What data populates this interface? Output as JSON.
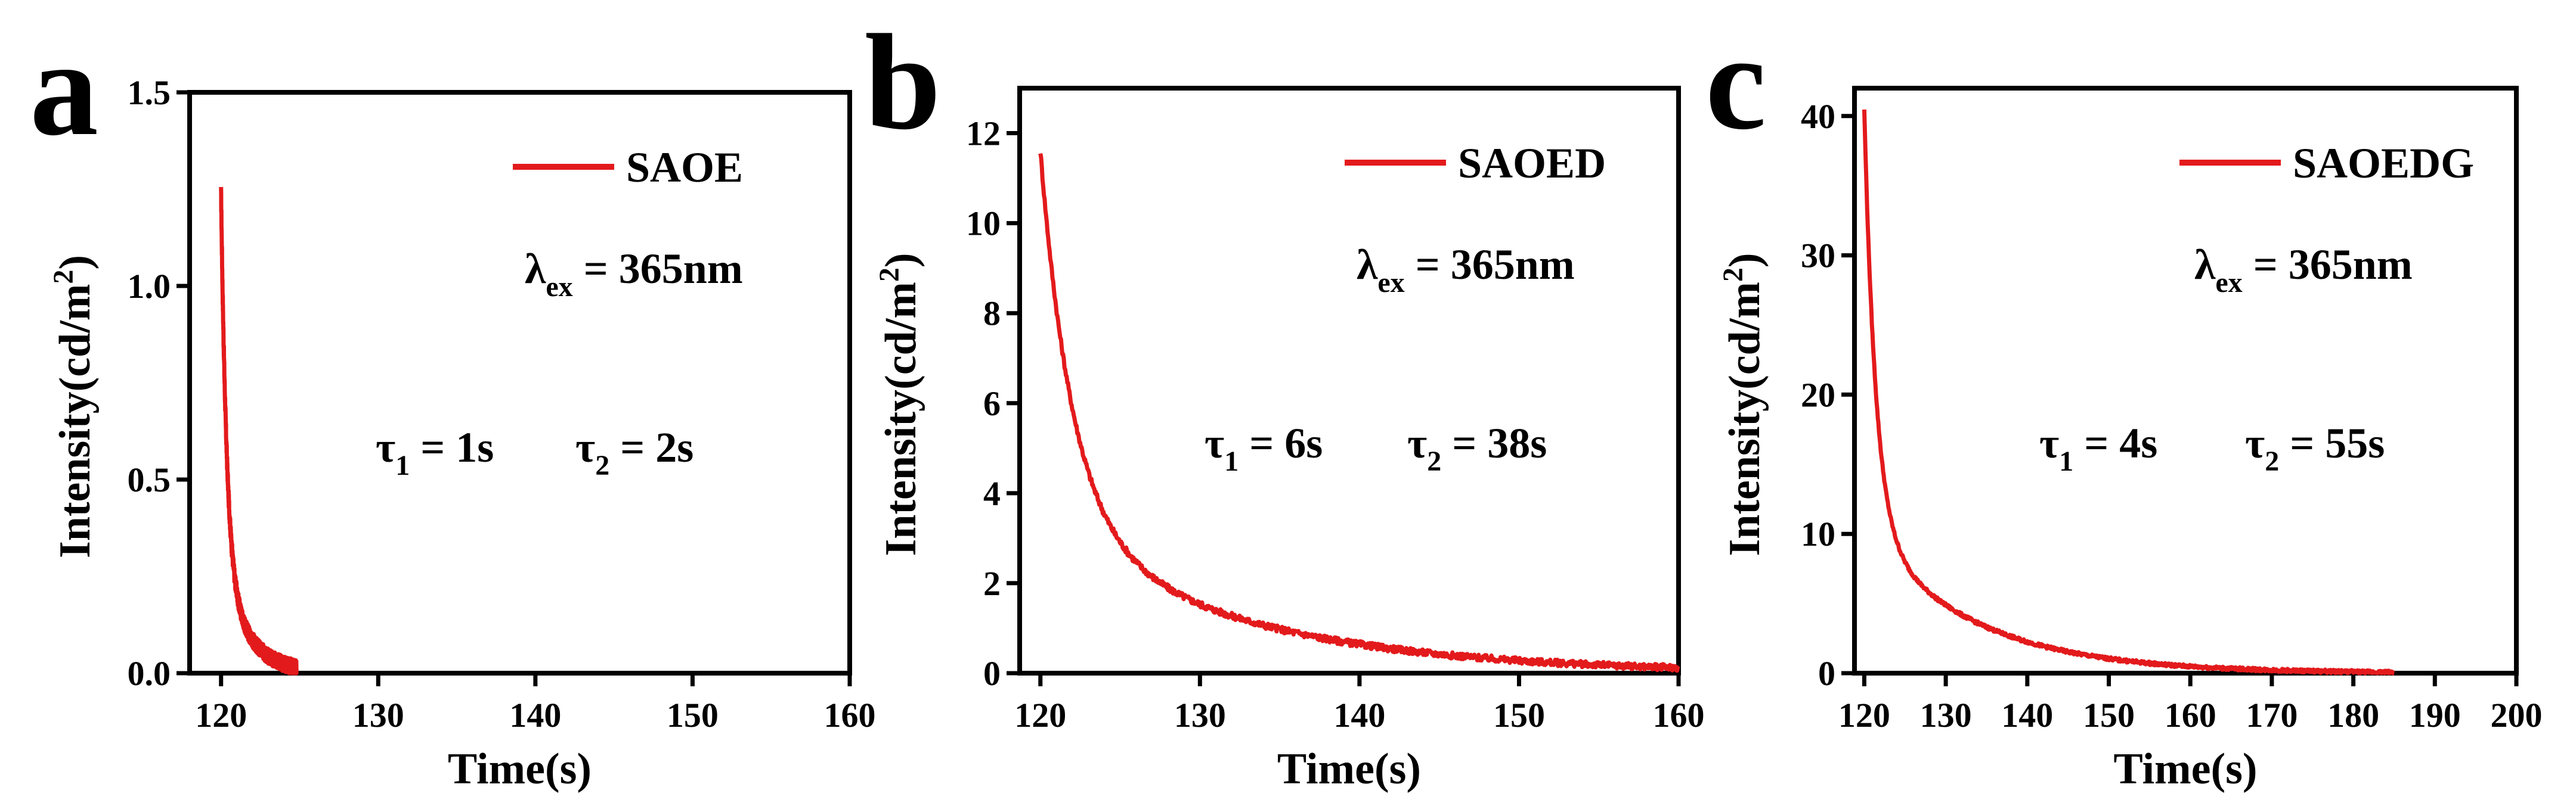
{
  "figure": {
    "colors": {
      "curve": "#e31a1c",
      "axis": "#000000",
      "background": "#ffffff"
    }
  },
  "chart_data": [
    {
      "panel": "a",
      "type": "line",
      "xlabel": "Time(s)",
      "ylabel": "Intensity(cd/m",
      "ylabel_sup": "2",
      "ylabel_close": ")",
      "xlim": [
        118,
        160
      ],
      "ylim": [
        0,
        1.5
      ],
      "xticks": [
        120,
        130,
        140,
        150,
        160
      ],
      "yticks": [
        0.0,
        0.5,
        1.0,
        1.5
      ],
      "ytick_labels": [
        "0.0",
        "0.5",
        "1.0",
        "1.5"
      ],
      "legend": "SAOE",
      "lambda_text": "λ",
      "lambda_sub": "ex",
      "lambda_value": " = 365nm",
      "tau1_sym": "τ",
      "tau1_sub": "1",
      "tau1_value": " = 1s",
      "tau2_sym": "τ",
      "tau2_sub": "2",
      "tau2_value": " = 2s",
      "decay": {
        "x0": 120,
        "A1": 0.95,
        "t1": 0.35,
        "A2": 0.29,
        "t2": 1.6,
        "y0": 0,
        "cutoff": 124.8,
        "noise": 0.02
      }
    },
    {
      "panel": "b",
      "type": "line",
      "xlabel": "Time(s)",
      "ylabel": "Intensity(cd/m",
      "ylabel_sup": "2",
      "ylabel_close": ")",
      "xlim": [
        118.7,
        160
      ],
      "ylim": [
        0,
        13
      ],
      "xticks": [
        120,
        130,
        140,
        150,
        160
      ],
      "yticks": [
        0,
        2,
        4,
        6,
        8,
        10,
        12
      ],
      "ytick_labels": [
        "0",
        "2",
        "4",
        "6",
        "8",
        "10",
        "12"
      ],
      "legend": "SAOED",
      "lambda_text": "λ",
      "lambda_sub": "ex",
      "lambda_value": " = 365nm",
      "tau1_sym": "τ",
      "tau1_sub": "1",
      "tau1_value": " = 6s",
      "tau2_sym": "τ",
      "tau2_sub": "2",
      "tau2_value": " = 38s",
      "decay": {
        "x0": 120,
        "A1": 8.2,
        "t1": 2.0,
        "A2": 3.4,
        "t2": 12.0,
        "y0": 0,
        "cutoff": 160,
        "noise": 0.07
      }
    },
    {
      "panel": "c",
      "type": "line",
      "xlabel": "Time(s)",
      "ylabel": "Intensity(cd/m",
      "ylabel_sup": "2",
      "ylabel_close": ")",
      "xlim": [
        118.8,
        200
      ],
      "ylim": [
        0,
        42
      ],
      "xticks": [
        120,
        130,
        140,
        150,
        160,
        170,
        180,
        190,
        200
      ],
      "yticks": [
        0,
        10,
        20,
        30,
        40
      ],
      "ytick_labels": [
        "0",
        "10",
        "20",
        "30",
        "40"
      ],
      "legend": "SAOEDG",
      "lambda_text": "λ",
      "lambda_sub": "ex",
      "lambda_value": " = 365nm",
      "tau1_sym": "τ",
      "tau1_sub": "1",
      "tau1_value": " = 4s",
      "tau2_sym": "τ",
      "tau2_sub": "2",
      "tau2_value": " = 55s",
      "decay": {
        "x0": 120,
        "A1": 30,
        "t1": 1.4,
        "A2": 10.5,
        "t2": 13.0,
        "y0": 0,
        "cutoff": 185,
        "noise": 0.12
      }
    }
  ]
}
